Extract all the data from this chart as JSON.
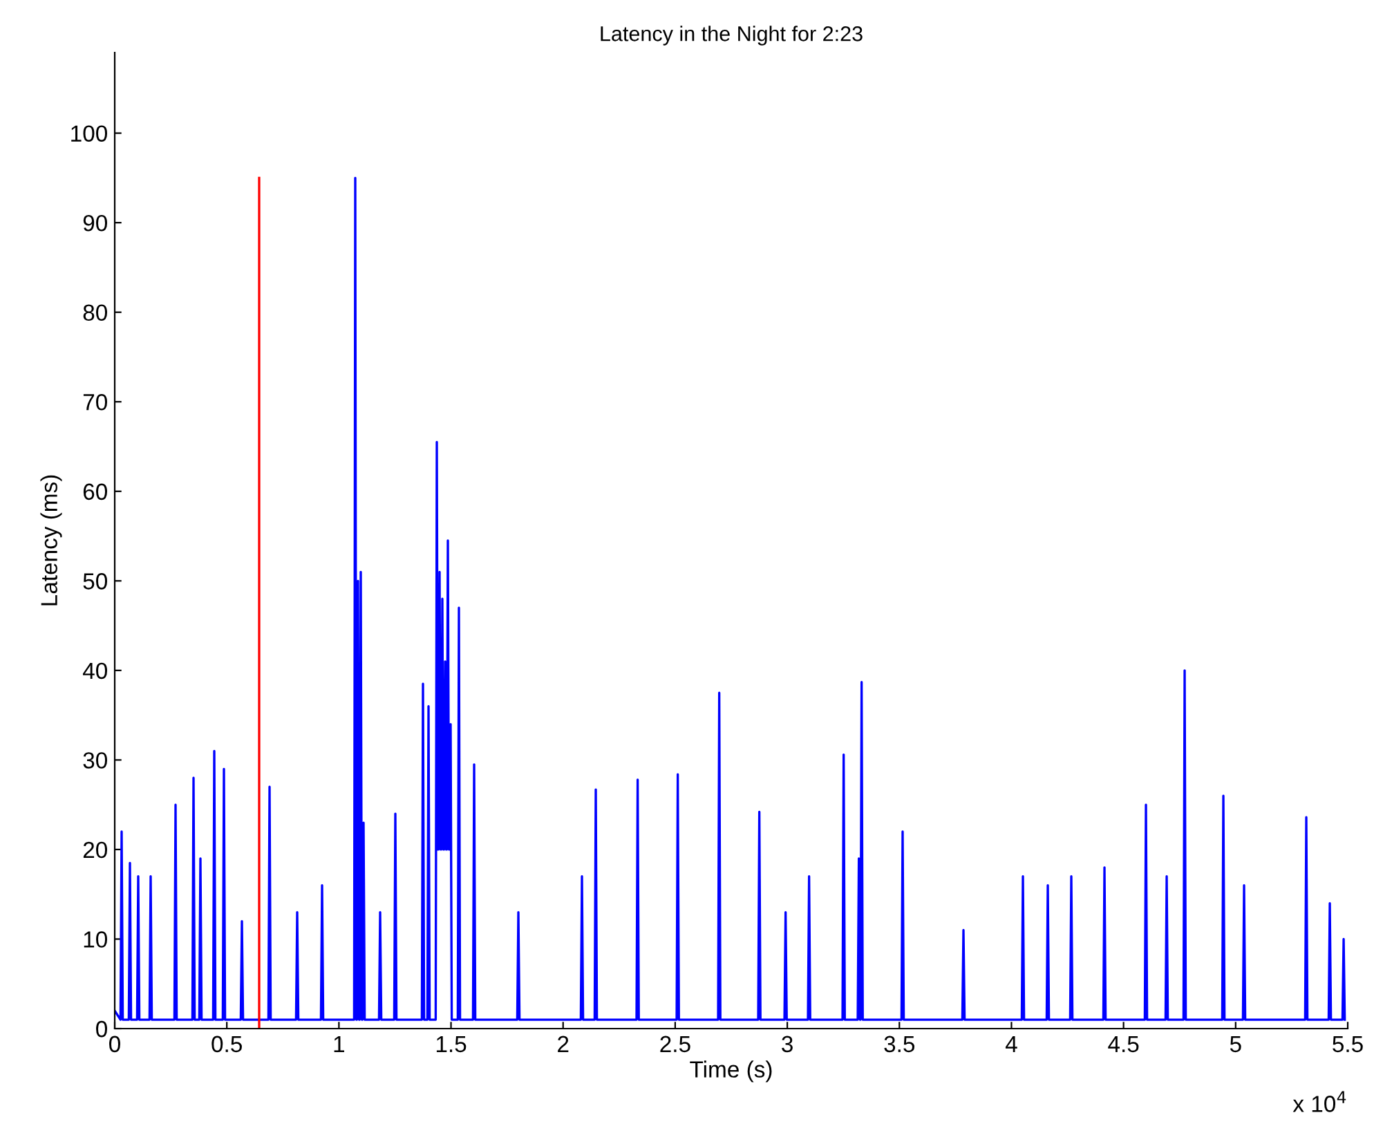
{
  "chart_data": {
    "type": "line",
    "title": "Latency in the Night for 2:23",
    "xlabel": "Time (s)",
    "ylabel": "Latency (ms)",
    "annotations": [
      "x 10$^{4}$"
    ],
    "xlim": [
      0,
      5.5
    ],
    "ylim": [
      0,
      109
    ],
    "xticks": [
      0,
      0.5,
      1,
      1.5,
      2,
      2.5,
      3,
      3.5,
      4,
      4.5,
      5,
      5.5
    ],
    "yticks": [
      0,
      10,
      20,
      30,
      40,
      50,
      60,
      70,
      80,
      90,
      100
    ],
    "series": [
      {
        "color": "#0000ff",
        "x": [
          0,
          0.0258,
          0.0308,
          0.0358,
          0.0628,
          0.0678,
          0.0728,
          0.0998,
          0.1048,
          0.1098,
          0.1553,
          0.1603,
          0.1653,
          0.2663,
          0.2713,
          0.2763,
          0.3465,
          0.3515,
          0.3565,
          0.3773,
          0.3823,
          0.3873,
          0.439,
          0.444,
          0.449,
          0.4821,
          0.4871,
          0.4921,
          0.5623,
          0.5673,
          0.5723,
          0.6856,
          0.6906,
          0.6956,
          0.8089,
          0.8139,
          0.8189,
          0.9199,
          0.9249,
          0.9299,
          1.0679,
          1.0729,
          1.0779,
          1.0802,
          1.0852,
          1.0902,
          1.0925,
          1.0975,
          1.1025,
          1.1049,
          1.1099,
          1.1149,
          1.1789,
          1.1839,
          1.1889,
          1.2467,
          1.2517,
          1.2567,
          1.37,
          1.375,
          1.38,
          1.3947,
          1.3997,
          1.4047,
          1.4317,
          1.4367,
          1.4417,
          1.444,
          1.449,
          1.454,
          1.4563,
          1.4613,
          1.4663,
          1.4687,
          1.4737,
          1.4787,
          1.481,
          1.486,
          1.491,
          1.4933,
          1.4983,
          1.5033,
          1.5303,
          1.5353,
          1.5403,
          1.5982,
          1.6032,
          1.6082,
          1.7955,
          1.8005,
          1.8055,
          2.0791,
          2.0841,
          2.0891,
          2.1408,
          2.1458,
          2.1508,
          2.3276,
          2.3326,
          2.3376,
          2.5065,
          2.5115,
          2.5165,
          2.6915,
          2.6965,
          2.7015,
          2.8703,
          2.8753,
          2.8803,
          2.9875,
          2.9925,
          2.9975,
          3.0923,
          3.0973,
          3.1023,
          3.2465,
          3.2515,
          3.2565,
          3.3143,
          3.3193,
          3.3243,
          3.3266,
          3.3316,
          3.3366,
          3.5095,
          3.5145,
          3.5195,
          3.7809,
          3.7859,
          3.7909,
          4.0461,
          4.0511,
          4.0561,
          4.1571,
          4.1621,
          4.1671,
          4.2619,
          4.2669,
          4.2719,
          4.4099,
          4.4149,
          4.4199,
          4.5949,
          4.5999,
          4.6049,
          4.6874,
          4.6924,
          4.6974,
          4.7675,
          4.7725,
          4.7775,
          4.9402,
          4.9452,
          4.9502,
          5.0326,
          5.0376,
          5.0426,
          5.3101,
          5.3151,
          5.3201,
          5.415,
          5.42,
          5.425,
          5.4767,
          5.4817,
          5.4867
        ],
        "values": [
          2,
          1,
          22,
          1,
          1,
          18.5,
          1,
          1,
          17,
          1,
          1,
          17,
          1,
          1,
          25,
          1,
          1,
          28,
          1,
          1,
          19,
          1,
          1,
          31,
          1,
          1,
          29,
          1,
          1,
          12,
          1,
          1,
          27,
          1,
          1,
          13,
          1,
          1,
          16,
          1,
          1,
          95,
          1,
          1,
          50,
          1,
          1,
          51,
          1,
          1,
          23,
          1,
          1,
          13,
          1,
          1,
          24,
          1,
          1,
          38.5,
          1,
          1,
          36,
          1,
          1,
          65.5,
          20,
          20,
          51,
          20,
          20,
          48,
          20,
          20,
          41,
          20,
          20,
          54.5,
          20,
          20,
          34,
          1,
          1,
          47,
          1,
          1,
          29.5,
          1,
          1,
          13,
          1,
          1,
          17,
          1,
          1,
          26.7,
          1,
          1,
          27.8,
          1,
          1,
          28.4,
          1,
          1,
          37.5,
          1,
          1,
          24.2,
          1,
          1,
          13,
          1,
          1,
          17,
          1,
          1,
          30.6,
          1,
          1,
          19,
          1,
          1,
          38.7,
          1,
          1,
          22,
          1,
          1,
          11,
          1,
          1,
          17,
          1,
          1,
          16,
          1,
          1,
          17,
          1,
          1,
          18,
          1,
          1,
          25,
          1,
          1,
          17,
          1,
          1,
          40,
          1,
          1,
          26,
          1,
          1,
          16,
          1,
          1,
          23.6,
          1,
          1,
          14,
          1,
          1,
          10,
          1
        ]
      },
      {
        "color": "#ff0000",
        "x": [
          0.6443,
          0.6443
        ],
        "values": [
          0,
          95
        ]
      }
    ]
  }
}
